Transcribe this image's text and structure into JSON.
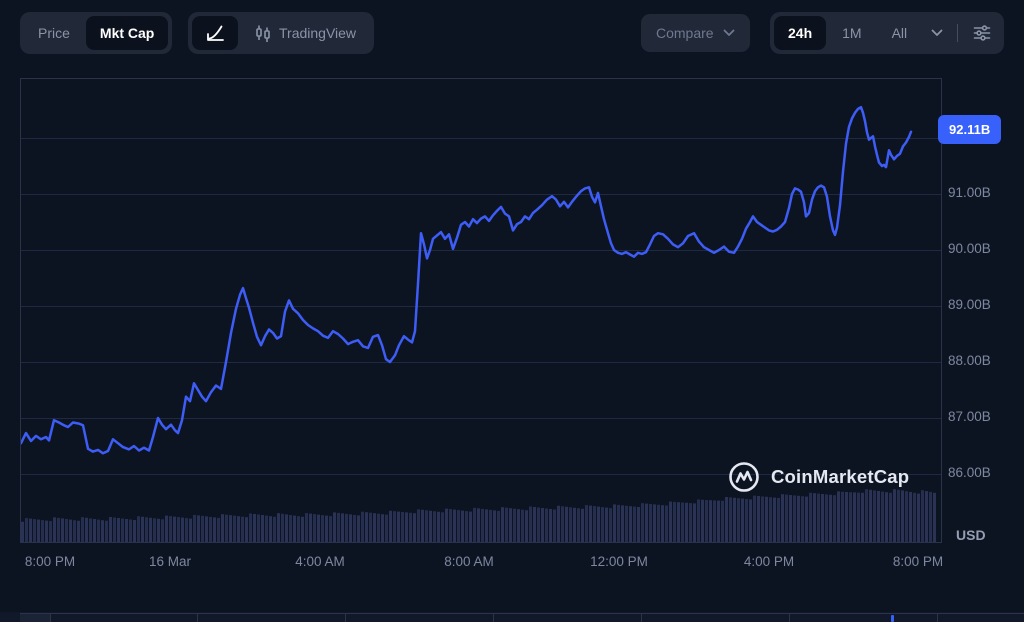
{
  "header": {
    "metric_toggle": {
      "options": [
        {
          "label": "Price",
          "active": false
        },
        {
          "label": "Mkt Cap",
          "active": true
        }
      ]
    },
    "chart_type_toggle": {
      "tradingview_label": "TradingView"
    },
    "compare": {
      "label": "Compare"
    },
    "range_selector": {
      "options": [
        {
          "label": "24h",
          "active": true
        },
        {
          "label": "1M",
          "active": false
        },
        {
          "label": "All",
          "active": false
        }
      ]
    }
  },
  "watermark": {
    "text": "CoinMarketCap"
  },
  "colors": {
    "background": "#0D1421",
    "line": "#3D5DF6",
    "badge": "#3861FB",
    "volume": "#2a3356",
    "grid": "#1f2941",
    "axis_text": "#7d87a0"
  },
  "chart_data": {
    "type": "line",
    "metric": "Mkt Cap",
    "range": "24h",
    "currency": "USD",
    "current_value_label": "92.11B",
    "y_axis": {
      "unit": "B USD",
      "tick_values": [
        91,
        90,
        89,
        88,
        87,
        86
      ],
      "tick_labels": [
        "91.00B",
        "90.00B",
        "89.00B",
        "88.00B",
        "87.00B",
        "86.00B"
      ],
      "top_gridline_value": 92,
      "visible_range_billions": [
        85.3,
        93.05
      ]
    },
    "x_axis": {
      "ticks": [
        {
          "label": "8:00 PM",
          "x": 50
        },
        {
          "label": "16 Mar",
          "x": 170
        },
        {
          "label": "4:00 AM",
          "x": 320
        },
        {
          "label": "8:00 AM",
          "x": 469
        },
        {
          "label": "12:00 PM",
          "x": 619
        },
        {
          "label": "4:00 PM",
          "x": 769
        },
        {
          "label": "8:00 PM",
          "x": 918
        }
      ],
      "plot_x_range": [
        20,
        940
      ]
    },
    "series": [
      {
        "name": "Market Cap (USD, billions)",
        "points_x_value": [
          [
            20,
            86.55
          ],
          [
            25,
            86.73
          ],
          [
            30,
            86.59
          ],
          [
            35,
            86.68
          ],
          [
            40,
            86.62
          ],
          [
            45,
            86.66
          ],
          [
            48,
            86.6
          ],
          [
            53,
            86.96
          ],
          [
            58,
            86.92
          ],
          [
            63,
            86.87
          ],
          [
            67,
            86.84
          ],
          [
            72,
            86.92
          ],
          [
            78,
            86.9
          ],
          [
            82,
            86.87
          ],
          [
            87,
            86.45
          ],
          [
            92,
            86.4
          ],
          [
            97,
            86.43
          ],
          [
            102,
            86.37
          ],
          [
            107,
            86.41
          ],
          [
            112,
            86.62
          ],
          [
            117,
            86.55
          ],
          [
            122,
            86.48
          ],
          [
            128,
            86.44
          ],
          [
            133,
            86.5
          ],
          [
            138,
            86.42
          ],
          [
            143,
            86.47
          ],
          [
            148,
            86.42
          ],
          [
            152,
            86.66
          ],
          [
            157,
            87.0
          ],
          [
            161,
            86.88
          ],
          [
            165,
            86.8
          ],
          [
            170,
            86.88
          ],
          [
            174,
            86.78
          ],
          [
            177,
            86.73
          ],
          [
            181,
            86.96
          ],
          [
            185,
            87.38
          ],
          [
            189,
            87.3
          ],
          [
            193,
            87.62
          ],
          [
            197,
            87.5
          ],
          [
            201,
            87.38
          ],
          [
            205,
            87.3
          ],
          [
            210,
            87.46
          ],
          [
            215,
            87.58
          ],
          [
            220,
            87.52
          ],
          [
            225,
            88.0
          ],
          [
            230,
            88.52
          ],
          [
            235,
            88.95
          ],
          [
            239,
            89.2
          ],
          [
            242,
            89.32
          ],
          [
            245,
            89.14
          ],
          [
            248,
            88.97
          ],
          [
            252,
            88.7
          ],
          [
            256,
            88.45
          ],
          [
            260,
            88.3
          ],
          [
            264,
            88.46
          ],
          [
            268,
            88.58
          ],
          [
            272,
            88.52
          ],
          [
            276,
            88.42
          ],
          [
            280,
            88.46
          ],
          [
            284,
            88.9
          ],
          [
            288,
            89.1
          ],
          [
            292,
            88.95
          ],
          [
            297,
            88.87
          ],
          [
            302,
            88.75
          ],
          [
            307,
            88.66
          ],
          [
            312,
            88.6
          ],
          [
            317,
            88.55
          ],
          [
            322,
            88.47
          ],
          [
            327,
            88.43
          ],
          [
            332,
            88.55
          ],
          [
            337,
            88.5
          ],
          [
            342,
            88.42
          ],
          [
            347,
            88.32
          ],
          [
            352,
            88.36
          ],
          [
            357,
            88.39
          ],
          [
            362,
            88.28
          ],
          [
            367,
            88.25
          ],
          [
            372,
            88.45
          ],
          [
            377,
            88.48
          ],
          [
            381,
            88.3
          ],
          [
            385,
            88.05
          ],
          [
            389,
            88.0
          ],
          [
            394,
            88.12
          ],
          [
            398,
            88.3
          ],
          [
            403,
            88.46
          ],
          [
            407,
            88.4
          ],
          [
            411,
            88.35
          ],
          [
            414,
            88.55
          ],
          [
            417,
            89.4
          ],
          [
            420,
            90.3
          ],
          [
            423,
            90.1
          ],
          [
            426,
            89.85
          ],
          [
            429,
            90.0
          ],
          [
            432,
            90.2
          ],
          [
            436,
            90.26
          ],
          [
            440,
            90.32
          ],
          [
            444,
            90.2
          ],
          [
            448,
            90.28
          ],
          [
            452,
            90.02
          ],
          [
            456,
            90.22
          ],
          [
            460,
            90.45
          ],
          [
            464,
            90.5
          ],
          [
            468,
            90.42
          ],
          [
            472,
            90.55
          ],
          [
            476,
            90.48
          ],
          [
            480,
            90.56
          ],
          [
            484,
            90.6
          ],
          [
            488,
            90.52
          ],
          [
            492,
            90.62
          ],
          [
            496,
            90.7
          ],
          [
            500,
            90.77
          ],
          [
            504,
            90.65
          ],
          [
            508,
            90.6
          ],
          [
            512,
            90.35
          ],
          [
            516,
            90.46
          ],
          [
            520,
            90.5
          ],
          [
            524,
            90.6
          ],
          [
            528,
            90.55
          ],
          [
            532,
            90.66
          ],
          [
            536,
            90.72
          ],
          [
            541,
            90.8
          ],
          [
            546,
            90.9
          ],
          [
            551,
            90.96
          ],
          [
            555,
            90.9
          ],
          [
            559,
            90.78
          ],
          [
            563,
            90.86
          ],
          [
            567,
            90.76
          ],
          [
            571,
            90.86
          ],
          [
            575,
            90.95
          ],
          [
            580,
            91.05
          ],
          [
            584,
            91.1
          ],
          [
            588,
            91.12
          ],
          [
            591,
            90.95
          ],
          [
            594,
            90.85
          ],
          [
            597,
            91.02
          ],
          [
            600,
            90.78
          ],
          [
            603,
            90.55
          ],
          [
            607,
            90.3
          ],
          [
            610,
            90.12
          ],
          [
            613,
            90.0
          ],
          [
            617,
            89.95
          ],
          [
            621,
            89.93
          ],
          [
            625,
            89.96
          ],
          [
            629,
            89.92
          ],
          [
            633,
            89.88
          ],
          [
            637,
            89.95
          ],
          [
            641,
            89.93
          ],
          [
            645,
            89.96
          ],
          [
            649,
            90.1
          ],
          [
            653,
            90.25
          ],
          [
            657,
            90.3
          ],
          [
            662,
            90.28
          ],
          [
            667,
            90.2
          ],
          [
            672,
            90.1
          ],
          [
            677,
            90.05
          ],
          [
            682,
            90.12
          ],
          [
            687,
            90.25
          ],
          [
            693,
            90.3
          ],
          [
            698,
            90.15
          ],
          [
            703,
            90.05
          ],
          [
            708,
            90.0
          ],
          [
            713,
            89.95
          ],
          [
            718,
            90.0
          ],
          [
            723,
            90.06
          ],
          [
            728,
            89.97
          ],
          [
            733,
            89.95
          ],
          [
            737,
            90.06
          ],
          [
            741,
            90.2
          ],
          [
            745,
            90.38
          ],
          [
            749,
            90.5
          ],
          [
            752,
            90.6
          ],
          [
            756,
            90.5
          ],
          [
            760,
            90.45
          ],
          [
            764,
            90.4
          ],
          [
            768,
            90.35
          ],
          [
            772,
            90.33
          ],
          [
            776,
            90.36
          ],
          [
            780,
            90.42
          ],
          [
            784,
            90.5
          ],
          [
            788,
            90.75
          ],
          [
            791,
            91.0
          ],
          [
            794,
            91.1
          ],
          [
            797,
            91.08
          ],
          [
            800,
            91.04
          ],
          [
            803,
            90.85
          ],
          [
            805,
            90.6
          ],
          [
            808,
            90.66
          ],
          [
            811,
            90.9
          ],
          [
            814,
            91.05
          ],
          [
            817,
            91.12
          ],
          [
            820,
            91.15
          ],
          [
            823,
            91.12
          ],
          [
            826,
            90.95
          ],
          [
            829,
            90.6
          ],
          [
            832,
            90.35
          ],
          [
            834,
            90.27
          ],
          [
            836,
            90.4
          ],
          [
            839,
            90.8
          ],
          [
            842,
            91.4
          ],
          [
            845,
            91.9
          ],
          [
            848,
            92.2
          ],
          [
            851,
            92.35
          ],
          [
            854,
            92.45
          ],
          [
            857,
            92.52
          ],
          [
            860,
            92.55
          ],
          [
            862,
            92.45
          ],
          [
            864,
            92.3
          ],
          [
            866,
            92.1
          ],
          [
            868,
            91.97
          ],
          [
            870,
            92.0
          ],
          [
            872,
            92.03
          ],
          [
            874,
            91.85
          ],
          [
            876,
            91.7
          ],
          [
            878,
            91.56
          ],
          [
            881,
            91.5
          ],
          [
            883,
            91.52
          ],
          [
            885,
            91.48
          ],
          [
            888,
            91.78
          ],
          [
            890,
            91.7
          ],
          [
            893,
            91.62
          ],
          [
            896,
            91.68
          ],
          [
            899,
            91.72
          ],
          [
            902,
            91.85
          ],
          [
            905,
            91.92
          ],
          [
            908,
            92.02
          ],
          [
            910,
            92.11
          ]
        ]
      }
    ],
    "volume_profile_x_height": [
      [
        20,
        22
      ],
      [
        60,
        23
      ],
      [
        100,
        23
      ],
      [
        140,
        24
      ],
      [
        180,
        25
      ],
      [
        220,
        26
      ],
      [
        260,
        27
      ],
      [
        300,
        27
      ],
      [
        340,
        28
      ],
      [
        380,
        29
      ],
      [
        420,
        31
      ],
      [
        460,
        32
      ],
      [
        500,
        33
      ],
      [
        540,
        34
      ],
      [
        580,
        35
      ],
      [
        620,
        36
      ],
      [
        660,
        38
      ],
      [
        700,
        41
      ],
      [
        720,
        43
      ],
      [
        740,
        44
      ],
      [
        760,
        45
      ],
      [
        780,
        46
      ],
      [
        800,
        47
      ],
      [
        820,
        48
      ],
      [
        840,
        49
      ],
      [
        860,
        51
      ],
      [
        880,
        51
      ],
      [
        900,
        51
      ],
      [
        920,
        50
      ],
      [
        935,
        49
      ]
    ]
  },
  "navigator": {
    "tick_x": [
      50,
      197,
      345,
      493,
      641,
      789,
      937
    ],
    "marker_x": 891
  }
}
